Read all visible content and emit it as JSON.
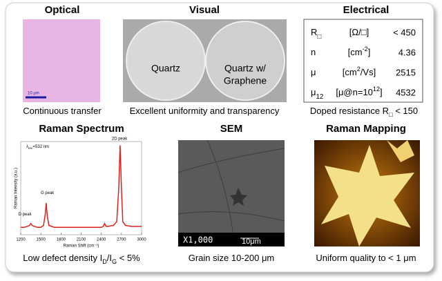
{
  "panels": {
    "optical": {
      "title": "Optical",
      "scale_label": "10 μm",
      "caption": [
        "Continuous transfer"
      ]
    },
    "visual": {
      "title": "Visual",
      "left_label": "Quartz",
      "right_label": [
        "Quartz w/",
        "Graphene"
      ],
      "caption": [
        "Excellent uniformity and transparency"
      ]
    },
    "electrical": {
      "title": "Electrical",
      "rows": [
        {
          "symbol": "R",
          "symbol_sub": "□",
          "unit": [
            "[Ω/□]"
          ],
          "value": "< 450"
        },
        {
          "symbol": "n",
          "symbol_sub": "",
          "unit": [
            "[cm",
            "-2",
            "]"
          ],
          "value": 4.36
        },
        {
          "symbol": "μ",
          "symbol_sub": "",
          "unit": [
            "[cm",
            "2",
            "/Vs]"
          ],
          "value": 2515
        },
        {
          "symbol": "μ",
          "symbol_sub": "12",
          "unit": [
            "[μ@n=10",
            "12",
            "]"
          ],
          "value": 4532
        }
      ],
      "caption": [
        "Doped resistance R",
        "□",
        " < 150"
      ]
    },
    "raman_spectrum": {
      "title": "Raman Spectrum",
      "caption": [
        "Low defect density I",
        "D",
        "/I",
        "G",
        " < 5%"
      ]
    },
    "sem": {
      "title": "SEM",
      "magnification": "X1,000",
      "scale_label": "10μm",
      "caption": [
        "Grain size 10-200 μm"
      ]
    },
    "raman_mapping": {
      "title": "Raman Mapping",
      "caption": [
        "Uniform quality to < 1 μm"
      ]
    }
  },
  "chart_data": {
    "type": "line",
    "xlabel": "Raman Shift (cm⁻¹)",
    "ylabel": "Raman Intensity (a.u.)",
    "annotations": [
      {
        "text": "D peak",
        "x": 1350
      },
      {
        "text": "G peak",
        "x": 1580
      },
      {
        "text": "2D peak",
        "x": 2680
      }
    ],
    "excitation": [
      "λ",
      "exc",
      "=532 nm"
    ],
    "xlim": [
      1200,
      3000
    ],
    "xticks": [
      1200,
      1500,
      1800,
      2100,
      2400,
      2700,
      3000
    ],
    "ylim": [
      0,
      100
    ],
    "series": [
      {
        "color": "#e0201b",
        "x": [
          1200,
          1250,
          1300,
          1330,
          1350,
          1370,
          1400,
          1450,
          1500,
          1540,
          1565,
          1580,
          1595,
          1620,
          1700,
          1800,
          1950,
          2100,
          2250,
          2400,
          2430,
          2450,
          2470,
          2500,
          2580,
          2630,
          2660,
          2680,
          2700,
          2720,
          2760,
          2850,
          3000
        ],
        "values": [
          8,
          8,
          9,
          10,
          12,
          10,
          9,
          8,
          8,
          10,
          22,
          34,
          20,
          10,
          8,
          8,
          8,
          8,
          8,
          8,
          9,
          12,
          9,
          9,
          10,
          14,
          50,
          96,
          50,
          14,
          10,
          9,
          9
        ]
      }
    ]
  }
}
